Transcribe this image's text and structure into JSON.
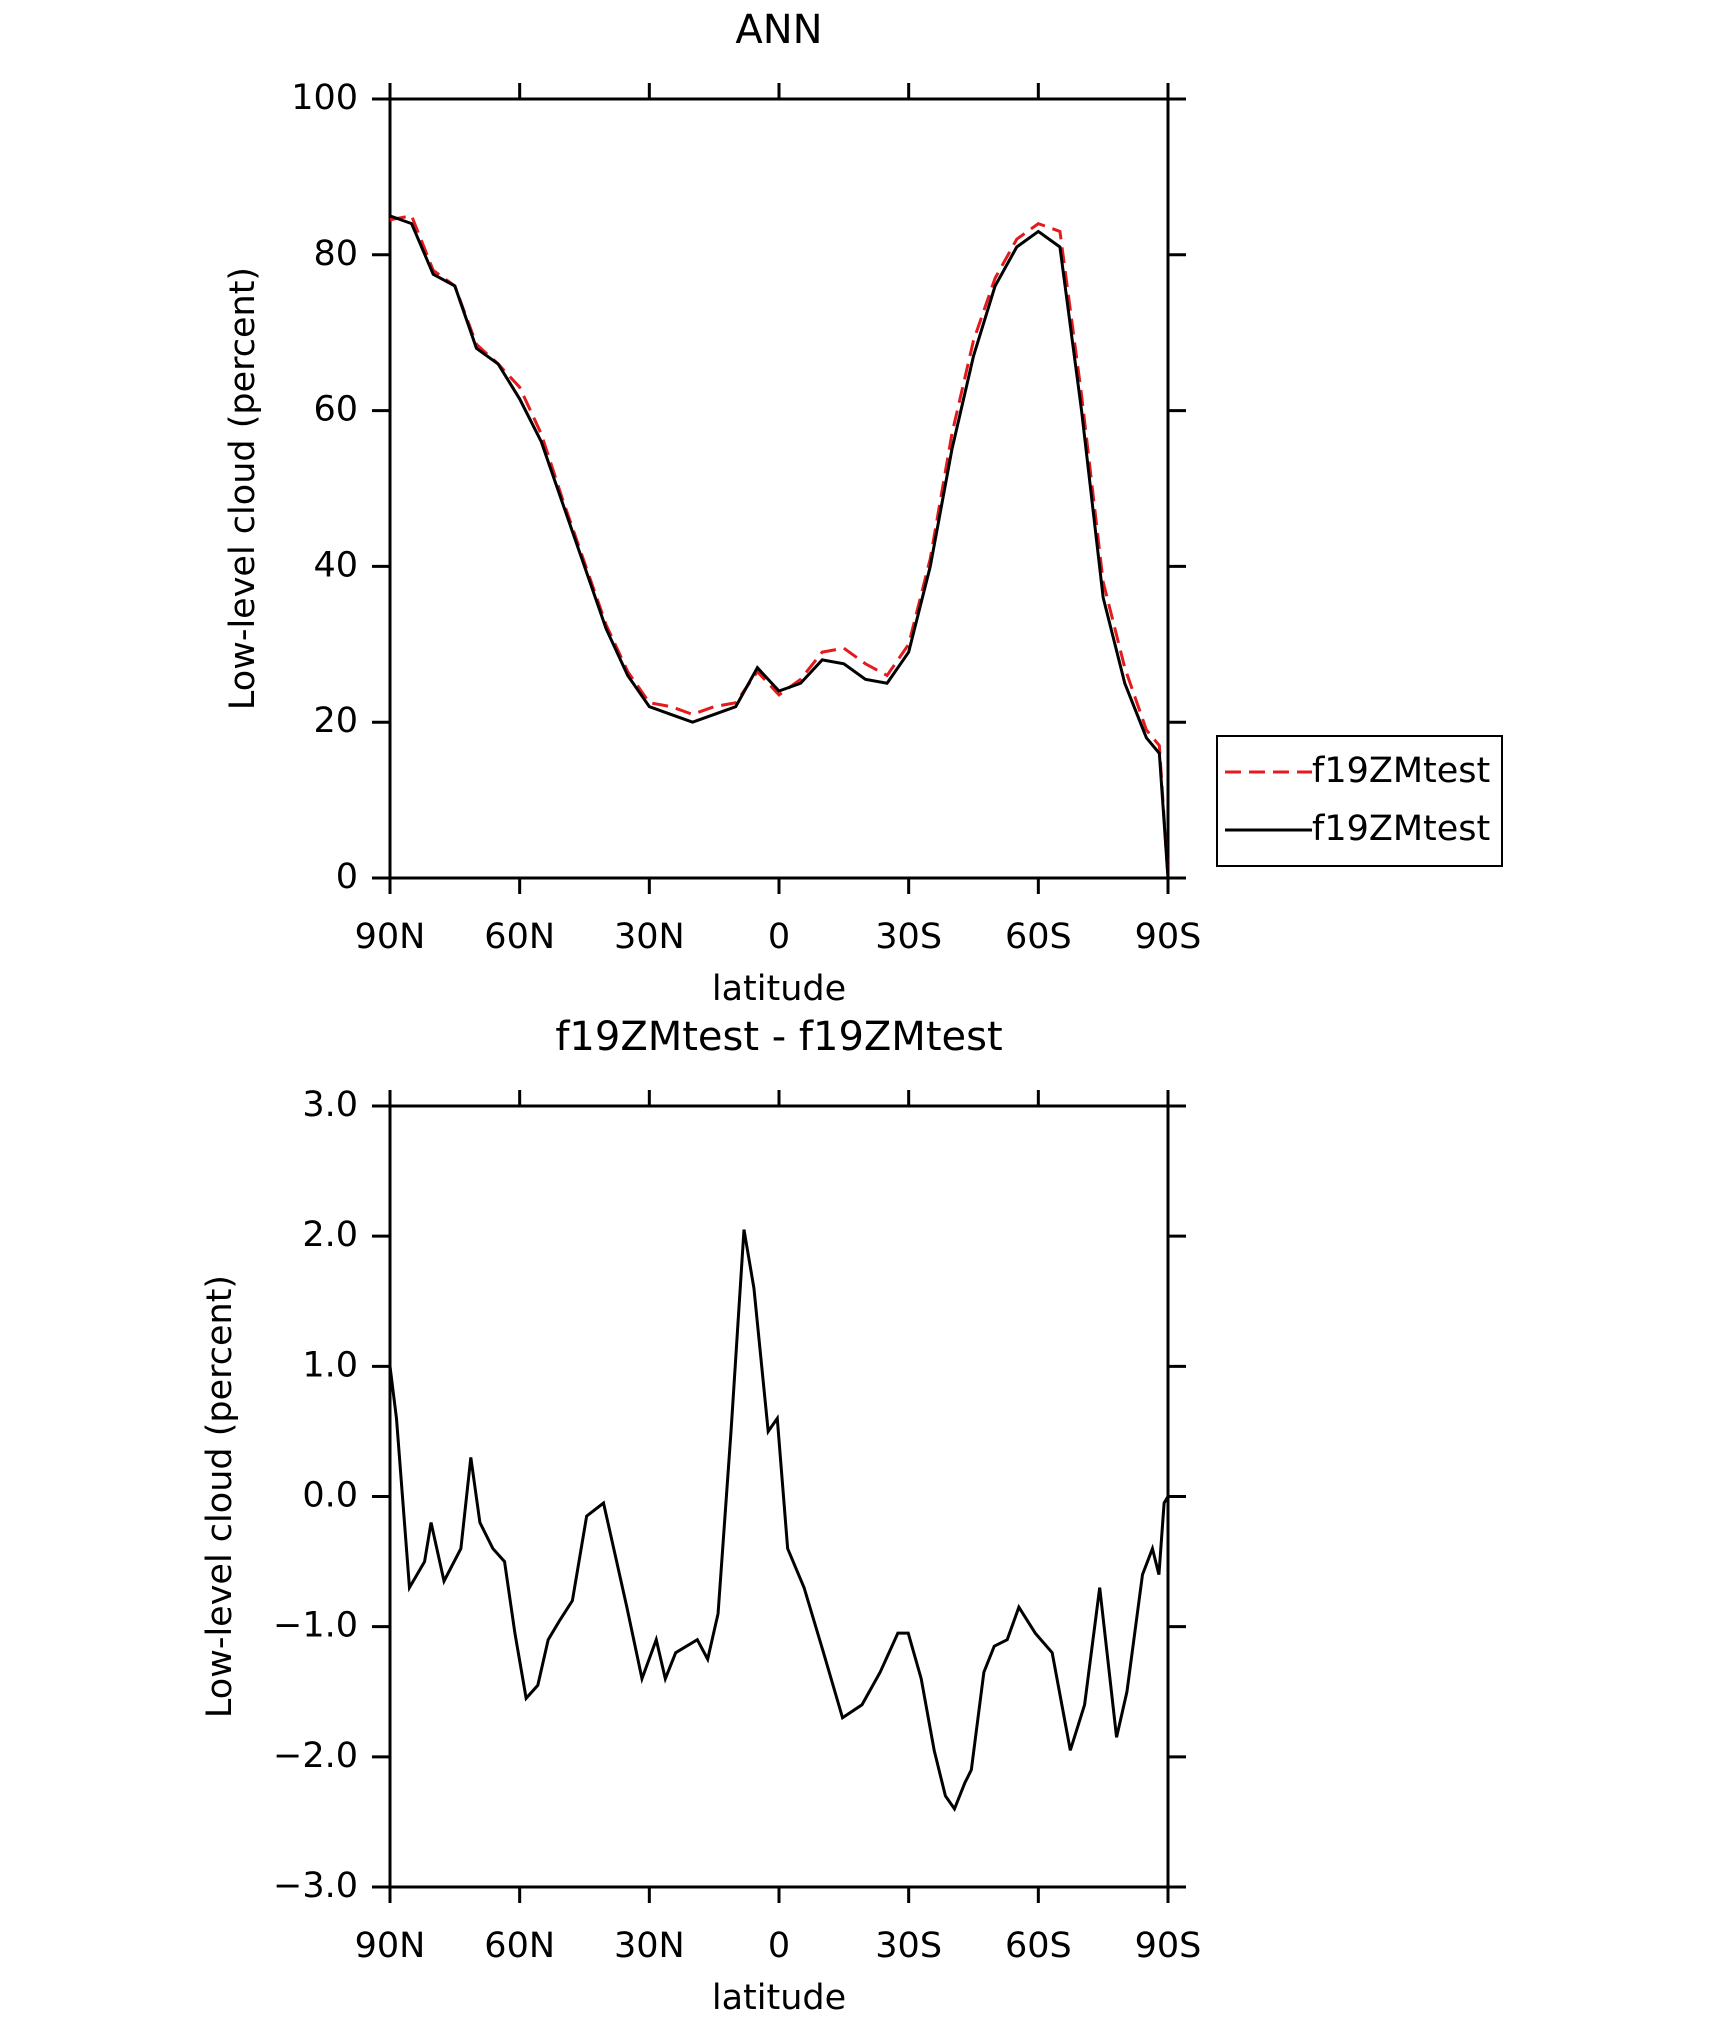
{
  "chart_data": [
    {
      "type": "line",
      "title": "ANN",
      "xlabel": "latitude",
      "ylabel": "Low-level cloud (percent)",
      "x": [
        90,
        85,
        80,
        75,
        70,
        65,
        60,
        55,
        50,
        45,
        40,
        35,
        30,
        25,
        20,
        15,
        10,
        5,
        0,
        -5,
        -10,
        -15,
        -20,
        -25,
        -30,
        -35,
        -40,
        -45,
        -50,
        -55,
        -60,
        -65,
        -70,
        -75,
        -80,
        -85,
        -88,
        -90
      ],
      "series": [
        {
          "name": "f19ZMtest",
          "color": "#e41a1c",
          "dash": "dashed",
          "values": [
            84.5,
            85,
            78,
            76,
            68.5,
            66,
            63,
            57,
            48.5,
            40.5,
            32.5,
            26.5,
            22.5,
            22,
            21,
            22,
            22.5,
            26.5,
            23.5,
            25.5,
            29,
            29.5,
            27.5,
            26,
            30,
            41,
            57,
            69,
            77,
            82,
            84,
            83,
            62,
            38,
            27,
            19,
            17,
            0
          ]
        },
        {
          "name": "f19ZMtest",
          "color": "#000000",
          "dash": "solid",
          "values": [
            85,
            84,
            77.5,
            76,
            68,
            66,
            61.5,
            56,
            48,
            40,
            32,
            26,
            22,
            21,
            20,
            21,
            22,
            27,
            24,
            25,
            28,
            27.5,
            25.5,
            25,
            29,
            40,
            55,
            67,
            76,
            81,
            83,
            81,
            60,
            36,
            25,
            18,
            16,
            0
          ]
        }
      ],
      "xlim": [
        90,
        -90
      ],
      "xticks": [
        {
          "value": 90,
          "label": "90N"
        },
        {
          "value": 60,
          "label": "60N"
        },
        {
          "value": 30,
          "label": "30N"
        },
        0,
        {
          "value": -30,
          "label": "30S"
        },
        {
          "value": -60,
          "label": "60S"
        },
        {
          "value": -90,
          "label": "90S"
        }
      ],
      "ylim": [
        0,
        100
      ],
      "yticks": [
        0,
        20,
        40,
        60,
        80,
        100
      ],
      "legend": "right"
    },
    {
      "type": "line",
      "title": "f19ZMtest - f19ZMtest",
      "xlabel": "latitude",
      "ylabel": "Low-level cloud (percent)",
      "x": [
        90,
        88.5,
        85.5,
        82,
        80.5,
        77.5,
        73.6,
        71.3,
        69.2,
        66.2,
        63.5,
        61.1,
        58.5,
        55.8,
        53.4,
        50.7,
        47.8,
        44.5,
        40.6,
        37.9,
        35.2,
        31.7,
        28.4,
        26.3,
        23.9,
        18.9,
        16.5,
        14.1,
        11.1,
        8.1,
        5.8,
        2.5,
        0.4,
        -2,
        -5.8,
        -10.3,
        -14.7,
        -19.2,
        -23.4,
        -27.5,
        -29.9,
        -32.9,
        -35.9,
        -38.5,
        -40.6,
        -43,
        -44.5,
        -47.4,
        -49.8,
        -52.8,
        -55.5,
        -59.3,
        -63.2,
        -67.4,
        -70.7,
        -74.2,
        -78.1,
        -80.5,
        -84.1,
        -86.4,
        -87.9,
        -89.1,
        -90
      ],
      "series": [
        {
          "name": "f19ZMtest - f19ZMtest",
          "color": "#000000",
          "dash": "solid",
          "values": [
            1.0,
            0.6,
            -0.7,
            -0.5,
            -0.2,
            -0.65,
            -0.4,
            0.3,
            -0.2,
            -0.4,
            -0.5,
            -1.05,
            -1.55,
            -1.45,
            -1.1,
            -0.95,
            -0.8,
            -0.15,
            -0.05,
            -0.45,
            -0.85,
            -1.4,
            -1.1,
            -1.4,
            -1.2,
            -1.1,
            -1.25,
            -0.9,
            0.5,
            2.05,
            1.6,
            0.5,
            0.6,
            -0.4,
            -0.7,
            -1.2,
            -1.7,
            -1.6,
            -1.35,
            -1.05,
            -1.05,
            -1.4,
            -1.95,
            -2.3,
            -2.4,
            -2.2,
            -2.1,
            -1.35,
            -1.15,
            -1.1,
            -0.85,
            -1.05,
            -1.2,
            -1.95,
            -1.6,
            -0.7,
            -1.85,
            -1.5,
            -0.6,
            -0.4,
            -0.6,
            -0.05,
            0.0
          ]
        }
      ],
      "xlim": [
        90,
        -90
      ],
      "xticks": [
        {
          "value": 90,
          "label": "90N"
        },
        {
          "value": 60,
          "label": "60N"
        },
        {
          "value": 30,
          "label": "30N"
        },
        0,
        {
          "value": -30,
          "label": "30S"
        },
        {
          "value": -60,
          "label": "60S"
        },
        {
          "value": -90,
          "label": "90S"
        }
      ],
      "ylim": [
        -3,
        3
      ],
      "yticks": [
        {
          "value": -3,
          "label": "−3.0"
        },
        {
          "value": -2,
          "label": "−2.0"
        },
        {
          "value": -1,
          "label": "−1.0"
        },
        {
          "value": 0,
          "label": "0.0"
        },
        {
          "value": 1,
          "label": "1.0"
        },
        {
          "value": 2,
          "label": "2.0"
        },
        {
          "value": 3,
          "label": "3.0"
        }
      ]
    }
  ]
}
